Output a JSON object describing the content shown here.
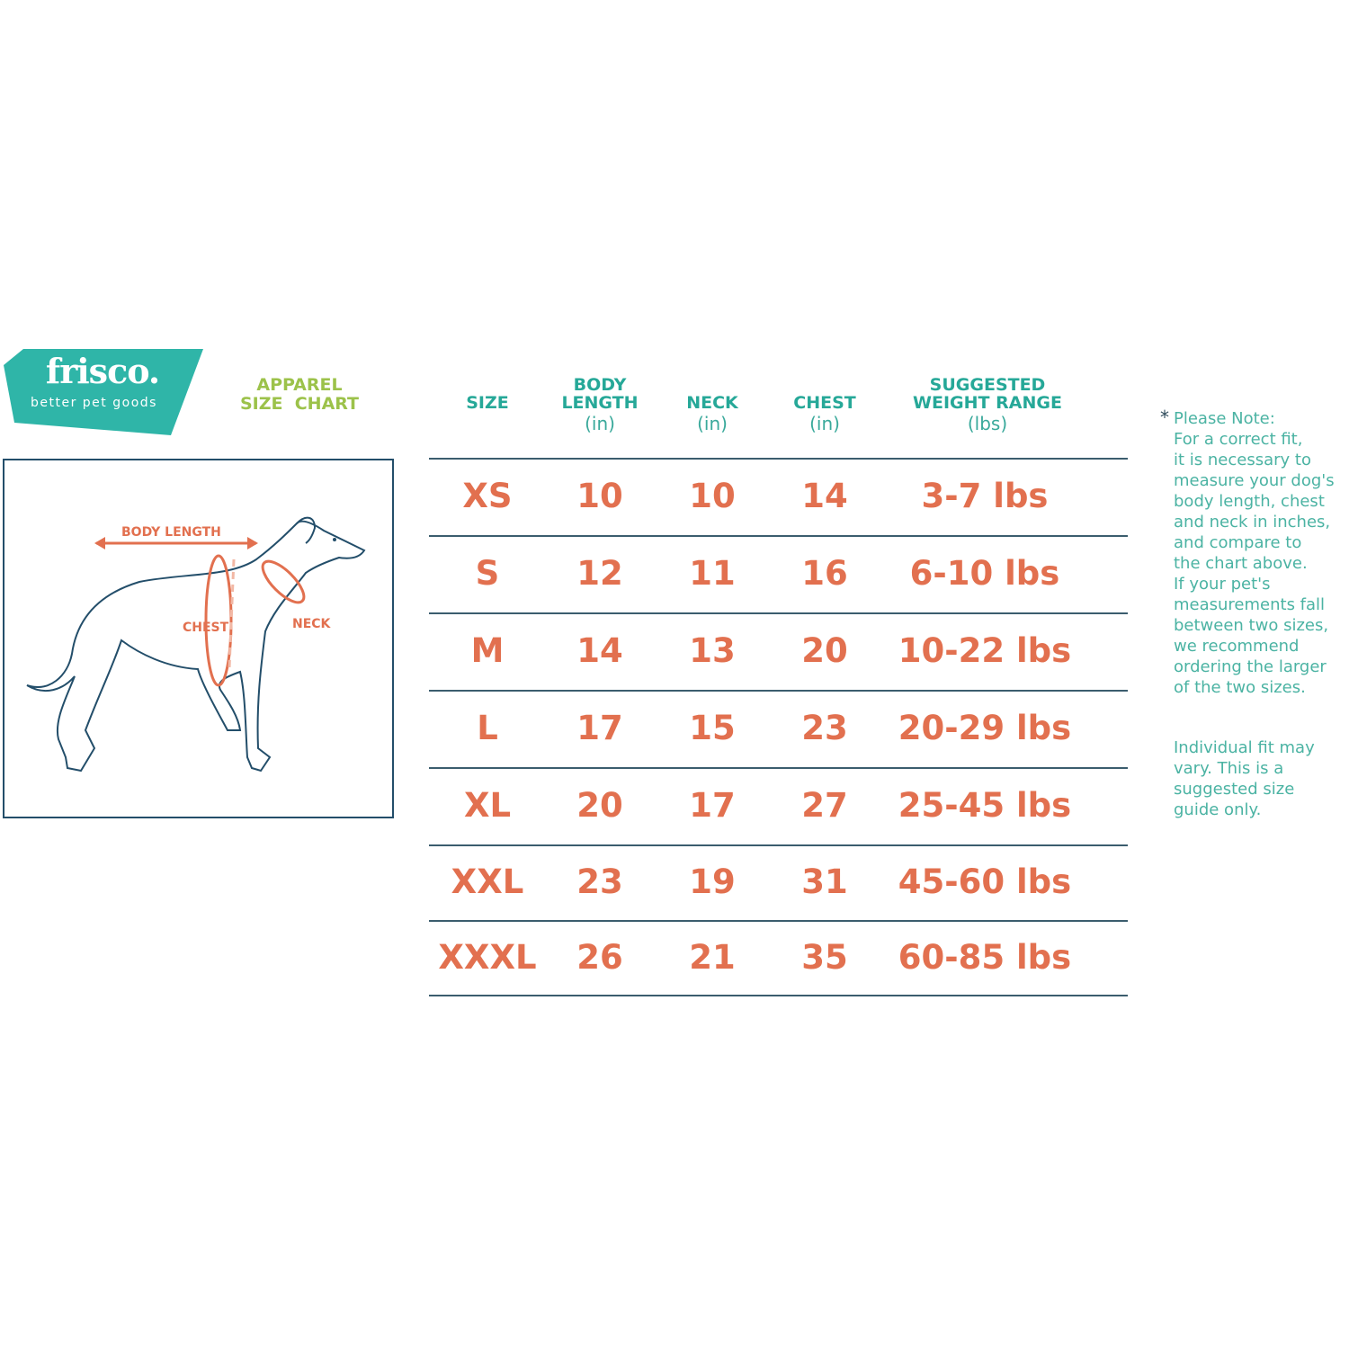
{
  "brand": {
    "name": "frisco.",
    "tagline": "better pet goods",
    "color": "#2fb5a8"
  },
  "title": {
    "line1": "APPAREL",
    "line2": "SIZE  CHART"
  },
  "illustration": {
    "labels": {
      "body_length": "BODY LENGTH",
      "chest": "CHEST",
      "neck": "NECK"
    }
  },
  "table": {
    "headers": [
      {
        "line1": "",
        "line2": "SIZE",
        "unit": ""
      },
      {
        "line1": "BODY",
        "line2": "LENGTH",
        "unit": "(in)"
      },
      {
        "line1": "",
        "line2": "NECK",
        "unit": "(in)"
      },
      {
        "line1": "",
        "line2": "CHEST",
        "unit": "(in)"
      },
      {
        "line1": "SUGGESTED",
        "line2": "WEIGHT RANGE",
        "unit": "(lbs)"
      }
    ],
    "rows": [
      [
        "XS",
        "10",
        "10",
        "14",
        "3-7 lbs"
      ],
      [
        "S",
        "12",
        "11",
        "16",
        "6-10 lbs"
      ],
      [
        "M",
        "14",
        "13",
        "20",
        "10-22 lbs"
      ],
      [
        "L",
        "17",
        "15",
        "23",
        "20-29 lbs"
      ],
      [
        "XL",
        "20",
        "17",
        "27",
        "25-45 lbs"
      ],
      [
        "XXL",
        "23",
        "19",
        "31",
        "45-60 lbs"
      ],
      [
        "XXXL",
        "26",
        "21",
        "35",
        "60-85 lbs"
      ]
    ]
  },
  "note": {
    "asterisk": "*",
    "text": "Please Note:\nFor a correct fit,\nit is necessary to\nmeasure your dog's\nbody length, chest\nand neck in inches,\nand compare to\nthe chart above.\nIf your pet's\nmeasurements fall\nbetween two sizes,\nwe recommend\nordering the larger\nof the two sizes.",
    "text2": "Individual fit may\nvary. This is a\nsuggested size\nguide only."
  },
  "colors": {
    "header": "#26a898",
    "value": "#e2704f",
    "title": "#9cc24a",
    "note": "#4bb3a3",
    "rule": "#3b5d6e"
  }
}
